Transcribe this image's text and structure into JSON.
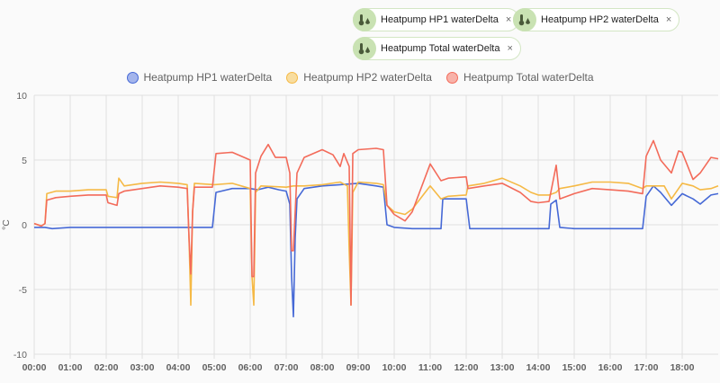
{
  "chips": [
    {
      "label": "Heatpump HP1 waterDelta",
      "icon": "thermometer-water-icon",
      "close": "×"
    },
    {
      "label": "Heatpump HP2 waterDelta",
      "icon": "thermometer-water-icon",
      "close": "×"
    },
    {
      "label": "Heatpump Total waterDelta",
      "icon": "thermometer-water-icon",
      "close": "×"
    }
  ],
  "legend": [
    {
      "label": "Heatpump HP1 waterDelta",
      "color": "#4669d6",
      "fill": "#a4b5ec"
    },
    {
      "label": "Heatpump HP2 waterDelta",
      "color": "#f5b945",
      "fill": "#f8dd9f"
    },
    {
      "label": "Heatpump Total waterDelta",
      "color": "#f36b5a",
      "fill": "#f8b2a9"
    }
  ],
  "chart_data": {
    "type": "line",
    "title": "",
    "xlabel": "",
    "ylabel": "°C",
    "ylim": [
      -10,
      10
    ],
    "yticks": [
      "10",
      "5",
      "0",
      "-5",
      "-10"
    ],
    "xticks": [
      "00:00",
      "01:00",
      "02:00",
      "03:00",
      "04:00",
      "05:00",
      "06:00",
      "07:00",
      "08:00",
      "09:00",
      "10:00",
      "11:00",
      "12:00",
      "13:00",
      "14:00",
      "15:00",
      "16:00",
      "17:00",
      "18:00"
    ],
    "xrange_hours": [
      0,
      19
    ],
    "grid": true,
    "legend_position": "top",
    "series": [
      {
        "name": "Heatpump HP1 waterDelta",
        "color": "#4669d6",
        "points": [
          [
            0,
            -0.2
          ],
          [
            0.3,
            -0.2
          ],
          [
            0.5,
            -0.3
          ],
          [
            1,
            -0.2
          ],
          [
            2,
            -0.2
          ],
          [
            3,
            -0.2
          ],
          [
            4,
            -0.2
          ],
          [
            4.95,
            -0.2
          ],
          [
            5.05,
            2.5
          ],
          [
            5.5,
            2.8
          ],
          [
            6,
            2.8
          ],
          [
            6.2,
            2.7
          ],
          [
            6.5,
            2.9
          ],
          [
            6.8,
            2.7
          ],
          [
            7,
            2.6
          ],
          [
            7.1,
            1.6
          ],
          [
            7.15,
            -4
          ],
          [
            7.2,
            -7.1
          ],
          [
            7.25,
            -1
          ],
          [
            7.3,
            2.0
          ],
          [
            7.5,
            2.8
          ],
          [
            8,
            3.0
          ],
          [
            8.5,
            3.1
          ],
          [
            9,
            3.2
          ],
          [
            9.5,
            3.0
          ],
          [
            9.7,
            2.9
          ],
          [
            9.8,
            0.0
          ],
          [
            10,
            -0.2
          ],
          [
            10.5,
            -0.3
          ],
          [
            11,
            -0.3
          ],
          [
            11.3,
            -0.3
          ],
          [
            11.35,
            2.0
          ],
          [
            11.5,
            2.0
          ],
          [
            12,
            2.0
          ],
          [
            12.1,
            -0.3
          ],
          [
            12.5,
            -0.3
          ],
          [
            13,
            -0.3
          ],
          [
            14,
            -0.3
          ],
          [
            14.3,
            -0.3
          ],
          [
            14.35,
            1.6
          ],
          [
            14.5,
            1.9
          ],
          [
            14.6,
            -0.2
          ],
          [
            15,
            -0.3
          ],
          [
            16,
            -0.3
          ],
          [
            16.9,
            -0.3
          ],
          [
            17,
            2.2
          ],
          [
            17.2,
            3.0
          ],
          [
            17.4,
            2.5
          ],
          [
            17.7,
            1.5
          ],
          [
            18,
            2.4
          ],
          [
            18.3,
            2.0
          ],
          [
            18.5,
            1.6
          ],
          [
            18.8,
            2.3
          ],
          [
            19,
            2.4
          ]
        ]
      },
      {
        "name": "Heatpump HP2 waterDelta",
        "color": "#f5b945",
        "points": [
          [
            0,
            0.1
          ],
          [
            0.2,
            -0.1
          ],
          [
            0.3,
            0.1
          ],
          [
            0.35,
            2.4
          ],
          [
            0.6,
            2.6
          ],
          [
            1,
            2.6
          ],
          [
            1.5,
            2.7
          ],
          [
            2,
            2.7
          ],
          [
            2.05,
            2.2
          ],
          [
            2.3,
            2.1
          ],
          [
            2.35,
            3.6
          ],
          [
            2.5,
            3.0
          ],
          [
            3,
            3.2
          ],
          [
            3.5,
            3.3
          ],
          [
            4,
            3.2
          ],
          [
            4.25,
            3.1
          ],
          [
            4.3,
            -1
          ],
          [
            4.35,
            -6.2
          ],
          [
            4.4,
            1
          ],
          [
            4.45,
            3.2
          ],
          [
            5,
            3.1
          ],
          [
            5.5,
            3.2
          ],
          [
            6,
            2.8
          ],
          [
            6.05,
            -4
          ],
          [
            6.1,
            -6.2
          ],
          [
            6.15,
            2.5
          ],
          [
            6.3,
            3.0
          ],
          [
            7,
            2.9
          ],
          [
            7.2,
            3.0
          ],
          [
            7.5,
            3.0
          ],
          [
            8,
            3.1
          ],
          [
            8.5,
            3.3
          ],
          [
            8.7,
            3.0
          ],
          [
            8.75,
            -2
          ],
          [
            8.8,
            -6.2
          ],
          [
            8.85,
            2.5
          ],
          [
            9,
            3.3
          ],
          [
            9.5,
            3.2
          ],
          [
            9.7,
            3.1
          ],
          [
            9.8,
            1.5
          ],
          [
            10,
            1.0
          ],
          [
            10.3,
            0.8
          ],
          [
            10.5,
            1.2
          ],
          [
            11,
            3.0
          ],
          [
            11.3,
            2.0
          ],
          [
            11.5,
            2.2
          ],
          [
            12,
            2.3
          ],
          [
            12.05,
            3.0
          ],
          [
            12.5,
            3.2
          ],
          [
            13,
            3.6
          ],
          [
            13.5,
            3.0
          ],
          [
            13.8,
            2.5
          ],
          [
            14,
            2.3
          ],
          [
            14.3,
            2.3
          ],
          [
            14.5,
            2.5
          ],
          [
            14.6,
            2.8
          ],
          [
            15,
            3.0
          ],
          [
            15.5,
            3.3
          ],
          [
            16,
            3.3
          ],
          [
            16.5,
            3.2
          ],
          [
            16.9,
            2.8
          ],
          [
            17,
            3.0
          ],
          [
            17.5,
            3.0
          ],
          [
            17.7,
            2.0
          ],
          [
            18,
            3.2
          ],
          [
            18.3,
            3.0
          ],
          [
            18.5,
            2.7
          ],
          [
            18.8,
            2.8
          ],
          [
            19,
            3.0
          ]
        ]
      },
      {
        "name": "Heatpump Total waterDelta",
        "color": "#f36b5a",
        "points": [
          [
            0,
            0.1
          ],
          [
            0.2,
            -0.1
          ],
          [
            0.3,
            0.1
          ],
          [
            0.35,
            1.9
          ],
          [
            0.6,
            2.1
          ],
          [
            1,
            2.2
          ],
          [
            1.5,
            2.3
          ],
          [
            2,
            2.3
          ],
          [
            2.05,
            1.7
          ],
          [
            2.3,
            1.5
          ],
          [
            2.35,
            2.4
          ],
          [
            2.5,
            2.6
          ],
          [
            3,
            2.8
          ],
          [
            3.5,
            3.0
          ],
          [
            4,
            2.9
          ],
          [
            4.25,
            2.8
          ],
          [
            4.3,
            -1
          ],
          [
            4.35,
            -3.8
          ],
          [
            4.4,
            1
          ],
          [
            4.45,
            2.9
          ],
          [
            4.95,
            2.9
          ],
          [
            5.05,
            5.5
          ],
          [
            5.5,
            5.6
          ],
          [
            6,
            5.0
          ],
          [
            6.05,
            -4
          ],
          [
            6.1,
            -4
          ],
          [
            6.15,
            4.0
          ],
          [
            6.3,
            5.3
          ],
          [
            6.5,
            6.2
          ],
          [
            6.7,
            5.2
          ],
          [
            7,
            5.2
          ],
          [
            7.1,
            4.0
          ],
          [
            7.15,
            -2
          ],
          [
            7.2,
            -2
          ],
          [
            7.3,
            4.0
          ],
          [
            7.5,
            5.2
          ],
          [
            8,
            5.8
          ],
          [
            8.3,
            5.4
          ],
          [
            8.5,
            4.5
          ],
          [
            8.6,
            5.5
          ],
          [
            8.75,
            4.5
          ],
          [
            8.8,
            -6.2
          ],
          [
            8.85,
            5.5
          ],
          [
            9,
            5.8
          ],
          [
            9.5,
            5.9
          ],
          [
            9.7,
            5.8
          ],
          [
            9.8,
            1.5
          ],
          [
            10,
            0.8
          ],
          [
            10.3,
            0.3
          ],
          [
            10.5,
            1.0
          ],
          [
            11,
            4.7
          ],
          [
            11.3,
            3.4
          ],
          [
            11.5,
            3.6
          ],
          [
            12,
            3.7
          ],
          [
            12.05,
            2.8
          ],
          [
            12.5,
            3.0
          ],
          [
            13,
            3.2
          ],
          [
            13.5,
            2.5
          ],
          [
            13.8,
            1.8
          ],
          [
            14,
            1.7
          ],
          [
            14.3,
            1.8
          ],
          [
            14.5,
            4.6
          ],
          [
            14.6,
            2.0
          ],
          [
            15,
            2.4
          ],
          [
            15.5,
            2.8
          ],
          [
            16,
            2.7
          ],
          [
            16.5,
            2.6
          ],
          [
            16.9,
            2.4
          ],
          [
            17,
            5.3
          ],
          [
            17.2,
            6.5
          ],
          [
            17.4,
            5.0
          ],
          [
            17.7,
            4.0
          ],
          [
            17.9,
            5.7
          ],
          [
            18,
            5.6
          ],
          [
            18.3,
            3.5
          ],
          [
            18.5,
            4.0
          ],
          [
            18.8,
            5.2
          ],
          [
            19,
            5.1
          ]
        ]
      }
    ]
  }
}
